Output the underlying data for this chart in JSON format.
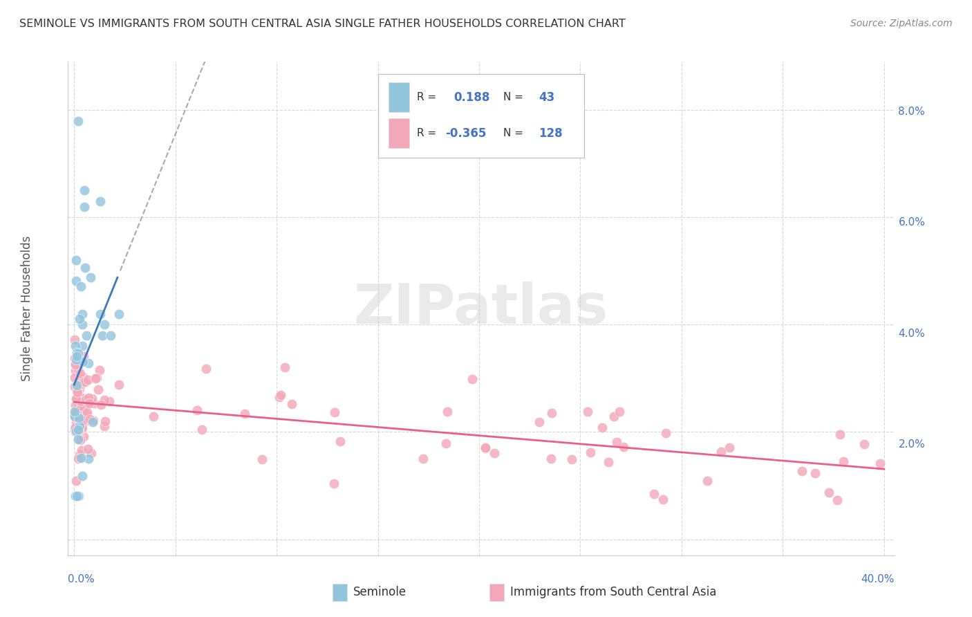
{
  "title": "SEMINOLE VS IMMIGRANTS FROM SOUTH CENTRAL ASIA SINGLE FATHER HOUSEHOLDS CORRELATION CHART",
  "source": "Source: ZipAtlas.com",
  "ylabel": "Single Father Households",
  "watermark": "ZIPatlas",
  "legend_blue_r": "0.188",
  "legend_blue_n": "43",
  "legend_pink_r": "-0.365",
  "legend_pink_n": "128",
  "blue_color": "#92c5de",
  "pink_color": "#f4a7b9",
  "blue_line_color": "#3d79b8",
  "pink_line_color": "#e8608a",
  "grid_color": "#d8d8d8",
  "background_color": "#ffffff",
  "text_color": "#4472c4",
  "label_color": "#555555",
  "xlim": [
    0.0,
    0.4
  ],
  "ylim": [
    0.0,
    0.088
  ],
  "blue_line_x_solid_end": 0.022,
  "blue_reg_slope": 0.95,
  "blue_reg_intercept": 0.024,
  "pink_reg_slope": -0.028,
  "pink_reg_intercept": 0.026
}
